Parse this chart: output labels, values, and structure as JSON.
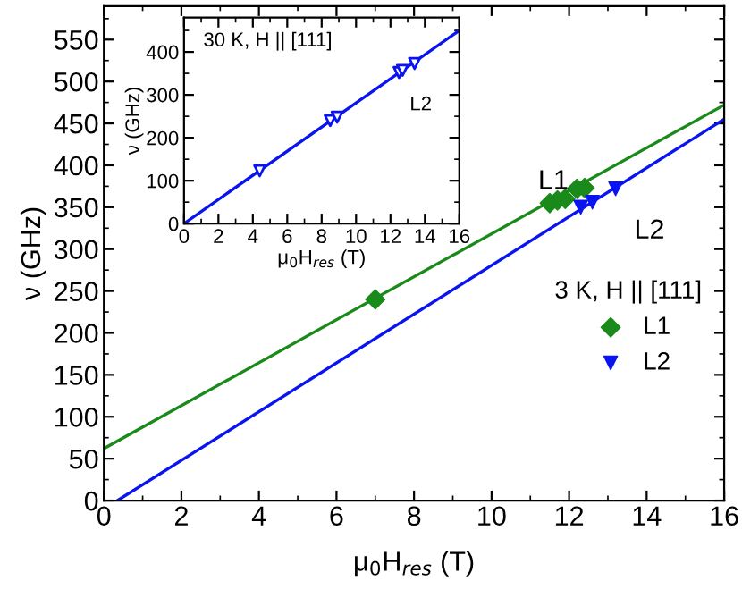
{
  "chart_data": [
    {
      "type": "scatter",
      "xlabel": "μ$_{0}$H$_{res}$ (T)",
      "ylabel": "ν (GHz)",
      "legend_title": "3 K, H || [111]",
      "legend": "right",
      "xlim": [
        0,
        16
      ],
      "ylim": [
        0,
        590
      ],
      "xticks": [
        0,
        2,
        4,
        6,
        8,
        10,
        12,
        14,
        16
      ],
      "yticks": [
        0,
        50,
        100,
        150,
        200,
        250,
        300,
        350,
        400,
        450,
        500,
        550
      ],
      "series": [
        {
          "name": "L1",
          "color": "#1a8a1a",
          "marker": "diamond",
          "x": [
            7.0,
            11.5,
            11.7,
            11.9,
            12.2,
            12.4
          ],
          "values": [
            240,
            355,
            358,
            360,
            372,
            373
          ]
        },
        {
          "name": "L2",
          "color": "#0a14f0",
          "marker": "triangle",
          "x": [
            12.3,
            12.6,
            13.2
          ],
          "values": [
            350,
            356,
            372
          ]
        },
        {
          "type": "line",
          "color": "#1a8a1a",
          "x": [
            0,
            16
          ],
          "values": [
            62,
            472
          ]
        },
        {
          "type": "line",
          "color": "#0a14f0",
          "x": [
            0.35,
            16
          ],
          "values": [
            0,
            455
          ]
        }
      ],
      "annotations": [
        "L1",
        "L2"
      ]
    },
    {
      "type": "scatter",
      "xlabel": "μ$_{0}$H$_{res}$ (T)",
      "ylabel": "ν (GHz)",
      "xlim": [
        0,
        16
      ],
      "ylim": [
        0,
        480
      ],
      "xticks": [
        0,
        2,
        4,
        6,
        8,
        10,
        12,
        14,
        16
      ],
      "yticks": [
        0,
        100,
        200,
        300,
        400
      ],
      "series": [
        {
          "color": "#0a14f0",
          "marker": "triangle_open",
          "x": [
            4.4,
            8.5,
            8.9,
            12.5,
            12.7,
            13.4
          ],
          "values": [
            123,
            240,
            248,
            352,
            357,
            373
          ]
        },
        {
          "type": "line",
          "color": "#0a14f0",
          "x": [
            0,
            16
          ],
          "values": [
            0,
            450
          ]
        }
      ],
      "annotations": [
        "30 K, H || [111]",
        "L2"
      ]
    }
  ]
}
